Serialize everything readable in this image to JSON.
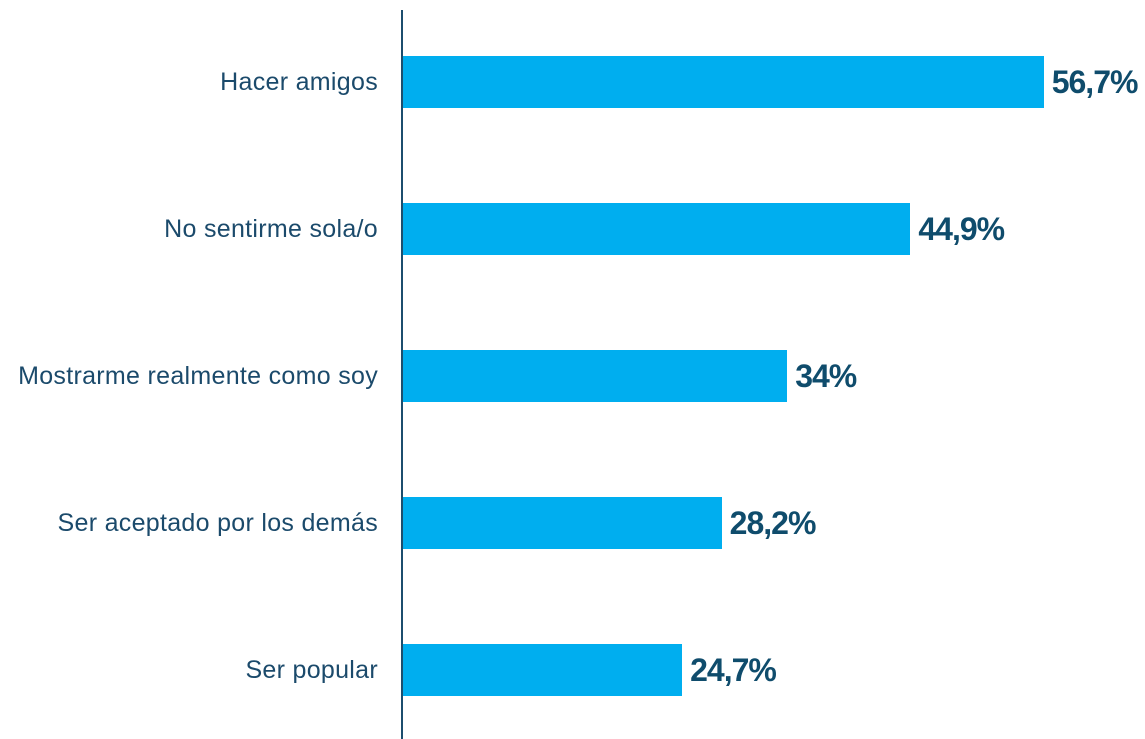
{
  "chart_data": {
    "type": "bar",
    "orientation": "horizontal",
    "categories": [
      "Hacer amigos",
      "No sentirme sola/o",
      "Mostrarme realmente como soy",
      "Ser aceptado por los demás",
      "Ser popular"
    ],
    "values": [
      56.7,
      44.9,
      34,
      28.2,
      24.7
    ],
    "value_labels": [
      "56,7%",
      "44,9%",
      "34%",
      "28,2%",
      "24,7%"
    ],
    "color": "#00aeef"
  }
}
